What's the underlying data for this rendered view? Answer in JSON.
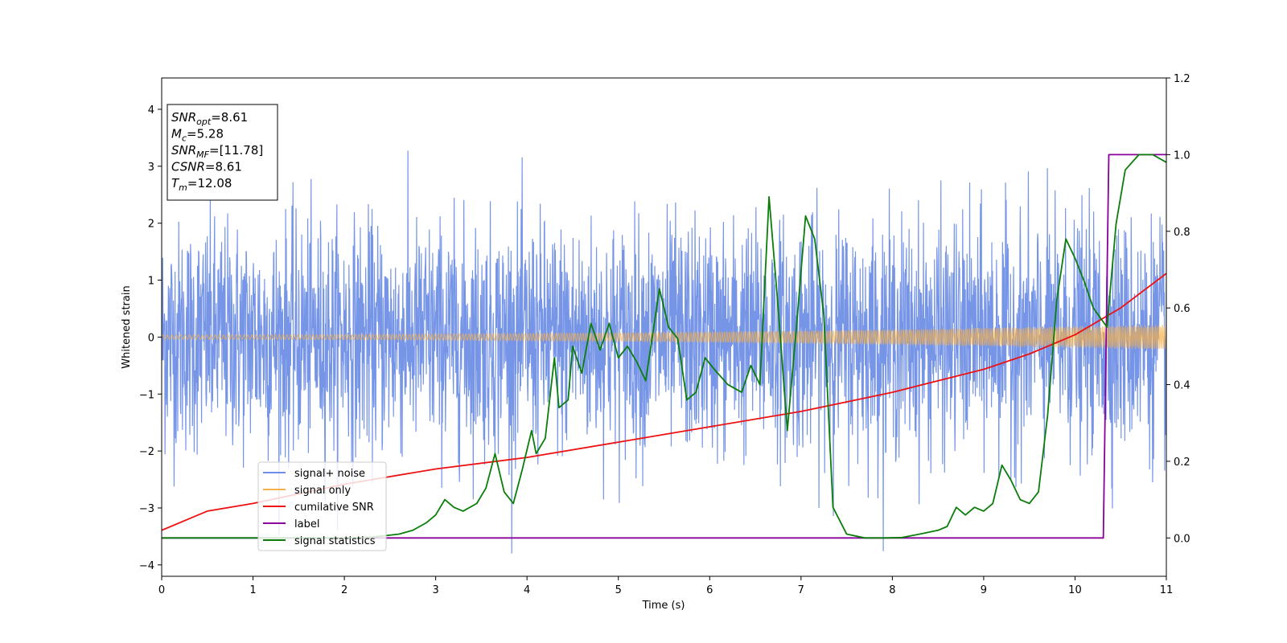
{
  "chart_data": {
    "type": "line",
    "xlabel": "Time (s)",
    "ylabel": "Whitened strain",
    "xlim": [
      0,
      11
    ],
    "ylim_left": [
      -4.2,
      4.55
    ],
    "ylim_right": [
      -0.1,
      1.2
    ],
    "x_ticks": [
      0,
      1,
      2,
      3,
      4,
      5,
      6,
      7,
      8,
      9,
      10,
      11
    ],
    "y_ticks_left": [
      -4,
      -3,
      -2,
      -1,
      0,
      1,
      2,
      3,
      4
    ],
    "y_ticks_right": [
      0.0,
      0.2,
      0.4,
      0.6,
      0.8,
      1.0,
      1.2
    ],
    "info_box": {
      "lines": [
        {
          "base": "SNR",
          "sub": "opt",
          "rest": "=8.61"
        },
        {
          "base": "M",
          "sub": "c",
          "rest": "=5.28"
        },
        {
          "base": "SNR",
          "sub": "MF",
          "rest": "=[11.78]"
        },
        {
          "base": "CSNR",
          "sub": "",
          "rest": "=8.61"
        },
        {
          "base": "T",
          "sub": "m",
          "rest": "=12.08"
        }
      ]
    },
    "legend": {
      "placement": "lower-left",
      "entries": [
        {
          "label": "signal+ noise",
          "color": "#6f8fe6"
        },
        {
          "label": "signal only",
          "color": "#f5b04a"
        },
        {
          "label": "cumilative SNR",
          "color": "#ee1111"
        },
        {
          "label": "label",
          "color": "#880099"
        },
        {
          "label": "signal statistics",
          "color": "#0a7d0a"
        }
      ]
    },
    "series": [
      {
        "name": "signal+ noise",
        "axis": "left",
        "color": "#6f8fe6",
        "kind": "noise",
        "std": 1.0,
        "x_range": [
          0,
          11
        ]
      },
      {
        "name": "signal only",
        "axis": "left",
        "color": "#f5b04a",
        "kind": "chirp",
        "amplitude_start": 0.04,
        "amplitude_end": 0.22
      },
      {
        "name": "cumilative SNR",
        "axis": "right",
        "color": "#ee1111",
        "x": [
          0,
          0.5,
          1,
          2,
          3,
          4,
          5,
          6,
          7,
          8,
          9,
          9.5,
          10,
          10.5,
          11
        ],
        "y": [
          0.02,
          0.07,
          0.09,
          0.14,
          0.18,
          0.21,
          0.25,
          0.29,
          0.33,
          0.38,
          0.44,
          0.48,
          0.53,
          0.6,
          0.69
        ]
      },
      {
        "name": "label",
        "axis": "right",
        "color": "#880099",
        "x": [
          0,
          10.31,
          10.37,
          11
        ],
        "y": [
          0.0,
          0.0,
          1.0,
          1.0
        ]
      },
      {
        "name": "signal statistics",
        "axis": "right",
        "color": "#0a7d0a",
        "x": [
          0,
          0.5,
          1,
          1.5,
          2,
          2.3,
          2.6,
          2.75,
          2.9,
          3.0,
          3.1,
          3.2,
          3.3,
          3.45,
          3.55,
          3.65,
          3.75,
          3.85,
          3.95,
          4.05,
          4.1,
          4.2,
          4.3,
          4.35,
          4.45,
          4.5,
          4.6,
          4.7,
          4.8,
          4.9,
          5.0,
          5.1,
          5.2,
          5.3,
          5.45,
          5.55,
          5.65,
          5.75,
          5.85,
          5.95,
          6.05,
          6.2,
          6.35,
          6.45,
          6.55,
          6.65,
          6.75,
          6.85,
          6.95,
          7.05,
          7.15,
          7.25,
          7.35,
          7.5,
          7.7,
          7.9,
          8.1,
          8.3,
          8.5,
          8.6,
          8.7,
          8.8,
          8.9,
          9.0,
          9.1,
          9.2,
          9.3,
          9.4,
          9.5,
          9.6,
          9.7,
          9.8,
          9.9,
          10.0,
          10.1,
          10.2,
          10.35,
          10.45,
          10.55,
          10.7,
          10.85,
          11.0
        ],
        "y": [
          0.0,
          0.0,
          0.0,
          0.0,
          0.0,
          0.002,
          0.01,
          0.02,
          0.04,
          0.06,
          0.1,
          0.08,
          0.07,
          0.09,
          0.13,
          0.22,
          0.12,
          0.09,
          0.18,
          0.28,
          0.22,
          0.26,
          0.47,
          0.34,
          0.36,
          0.5,
          0.43,
          0.56,
          0.49,
          0.56,
          0.47,
          0.5,
          0.46,
          0.41,
          0.65,
          0.55,
          0.52,
          0.36,
          0.38,
          0.47,
          0.44,
          0.4,
          0.38,
          0.45,
          0.4,
          0.89,
          0.6,
          0.28,
          0.55,
          0.84,
          0.78,
          0.58,
          0.08,
          0.01,
          0.0,
          0.0,
          0.001,
          0.01,
          0.02,
          0.03,
          0.08,
          0.06,
          0.08,
          0.07,
          0.09,
          0.19,
          0.15,
          0.1,
          0.09,
          0.12,
          0.32,
          0.62,
          0.78,
          0.73,
          0.67,
          0.6,
          0.55,
          0.82,
          0.96,
          1.0,
          1.0,
          0.98
        ]
      }
    ]
  }
}
